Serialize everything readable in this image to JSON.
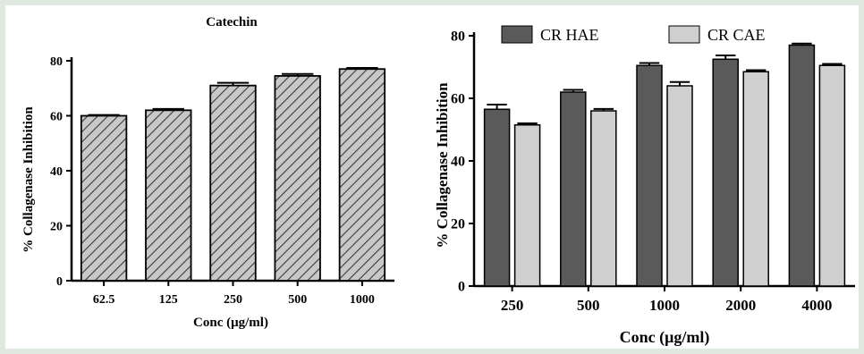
{
  "chart_data": [
    {
      "type": "bar",
      "title": "Catechin",
      "xlabel": "Conc (μg/ml)",
      "ylabel": "% Collagenase Inhibition",
      "categories": [
        "62.5",
        "125",
        "250",
        "500",
        "1000"
      ],
      "values": [
        60,
        62,
        71,
        74.5,
        77
      ],
      "errors": [
        0.3,
        0.5,
        1,
        0.7,
        0.4
      ],
      "ylim": [
        0,
        80
      ],
      "yticks": [
        "0",
        "20",
        "40",
        "60",
        "80"
      ],
      "fill": "hatched",
      "grid": false
    },
    {
      "type": "bar",
      "title": "",
      "xlabel": "Conc (μg/ml)",
      "ylabel": "% Collagenase Inhibition",
      "categories": [
        "250",
        "500",
        "1000",
        "2000",
        "4000"
      ],
      "series": [
        {
          "name": "CR HAE",
          "values": [
            56.5,
            62,
            70.5,
            72.5,
            77
          ],
          "errors": [
            1.5,
            0.7,
            0.8,
            1.2,
            0.5
          ],
          "color": "#5a5a5a"
        },
        {
          "name": "CR CAE",
          "values": [
            51.5,
            56,
            64,
            68.5,
            70.5
          ],
          "errors": [
            0.5,
            0.6,
            1.2,
            0.5,
            0.5
          ],
          "color": "#cfcfcf"
        }
      ],
      "ylim": [
        0,
        80
      ],
      "yticks": [
        "0",
        "20",
        "40",
        "60",
        "80"
      ],
      "legend_position": "top",
      "grid": false
    }
  ]
}
